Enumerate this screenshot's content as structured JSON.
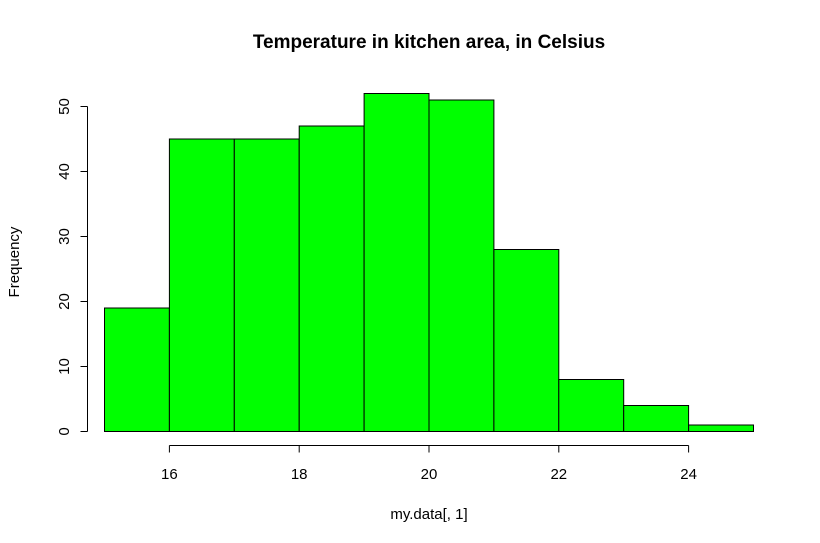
{
  "chart_data": {
    "type": "bar",
    "title": "Temperature in kitchen area, in Celsius",
    "xlabel": "my.data[, 1]",
    "ylabel": "Frequency",
    "bins": [
      {
        "from": 15,
        "to": 16,
        "count": 19
      },
      {
        "from": 16,
        "to": 17,
        "count": 45
      },
      {
        "from": 17,
        "to": 18,
        "count": 45
      },
      {
        "from": 18,
        "to": 19,
        "count": 47
      },
      {
        "from": 19,
        "to": 20,
        "count": 52
      },
      {
        "from": 20,
        "to": 21,
        "count": 51
      },
      {
        "from": 21,
        "to": 22,
        "count": 28
      },
      {
        "from": 22,
        "to": 23,
        "count": 8
      },
      {
        "from": 23,
        "to": 24,
        "count": 4
      },
      {
        "from": 24,
        "to": 25,
        "count": 1
      }
    ],
    "x_ticks": [
      16,
      18,
      20,
      22,
      24
    ],
    "y_ticks": [
      0,
      10,
      20,
      30,
      40,
      50
    ],
    "xlim": [
      15,
      25
    ],
    "ylim": [
      0,
      52
    ],
    "bar_color": "#00ff00",
    "grid": false
  }
}
